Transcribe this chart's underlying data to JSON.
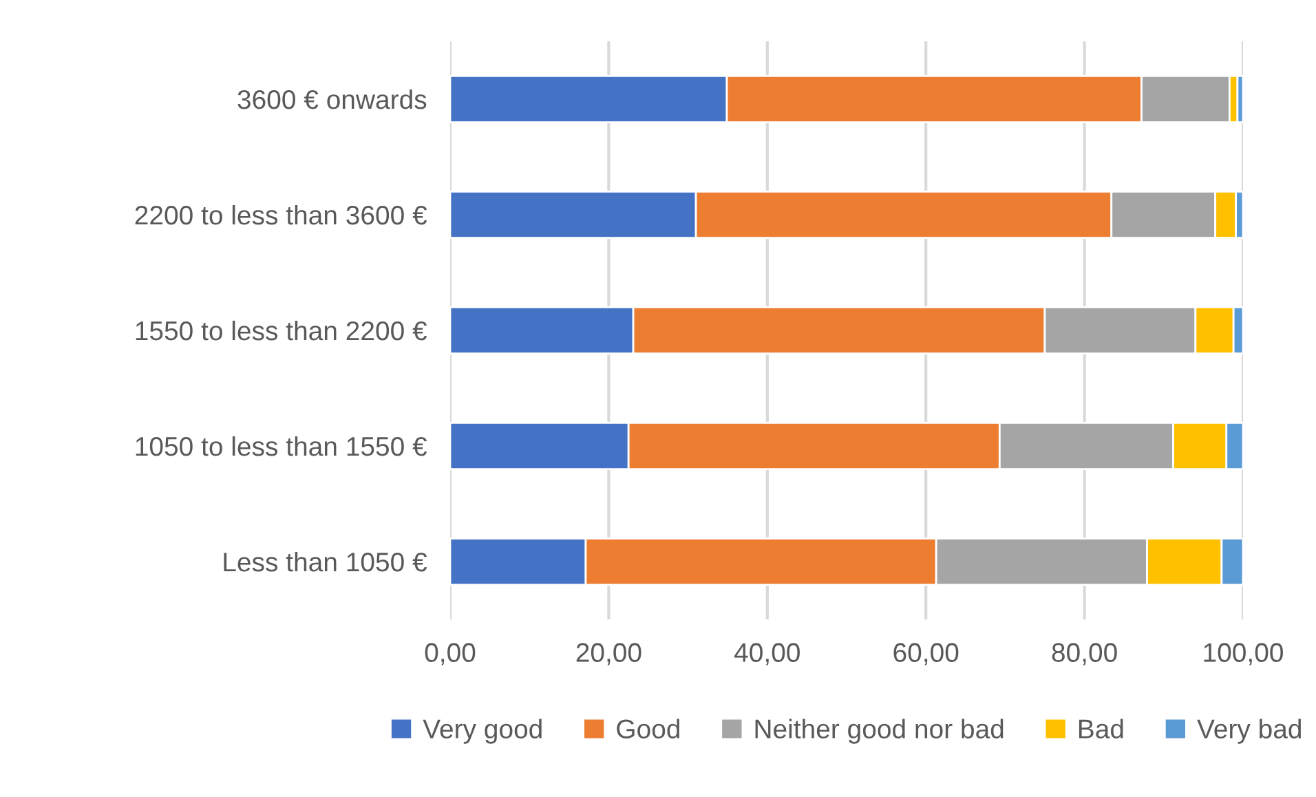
{
  "chart_data": {
    "type": "bar",
    "orientation": "horizontal",
    "stacked": true,
    "categories": [
      "3600 € onwards",
      "2200 to less than 3600 €",
      "1550 to less than 2200 €",
      "1050 to less than 1550 €",
      "Less than 1050 €"
    ],
    "series": [
      {
        "name": "Very good",
        "color": "#4472c4",
        "values": [
          34.9,
          31.0,
          23.1,
          22.5,
          17.1
        ]
      },
      {
        "name": "Good",
        "color": "#ed7d31",
        "values": [
          52.3,
          52.4,
          51.9,
          46.8,
          44.2
        ]
      },
      {
        "name": "Neither good nor bad",
        "color": "#a5a5a5",
        "values": [
          11.1,
          13.1,
          19.0,
          21.9,
          26.6
        ]
      },
      {
        "name": "Bad",
        "color": "#ffc000",
        "values": [
          1.0,
          2.6,
          4.8,
          6.7,
          9.4
        ]
      },
      {
        "name": "Very bad",
        "color": "#5b9bd5",
        "values": [
          0.7,
          0.9,
          1.2,
          2.1,
          2.7
        ]
      }
    ],
    "xlim": [
      0,
      100
    ],
    "xticks": [
      {
        "value": 0,
        "label": "0,00"
      },
      {
        "value": 20,
        "label": "20,00"
      },
      {
        "value": 40,
        "label": "40,00"
      },
      {
        "value": 60,
        "label": "60,00"
      },
      {
        "value": 80,
        "label": "80,00"
      },
      {
        "value": 100,
        "label": "100,00"
      }
    ],
    "grid": "x",
    "legend": "bottom"
  }
}
